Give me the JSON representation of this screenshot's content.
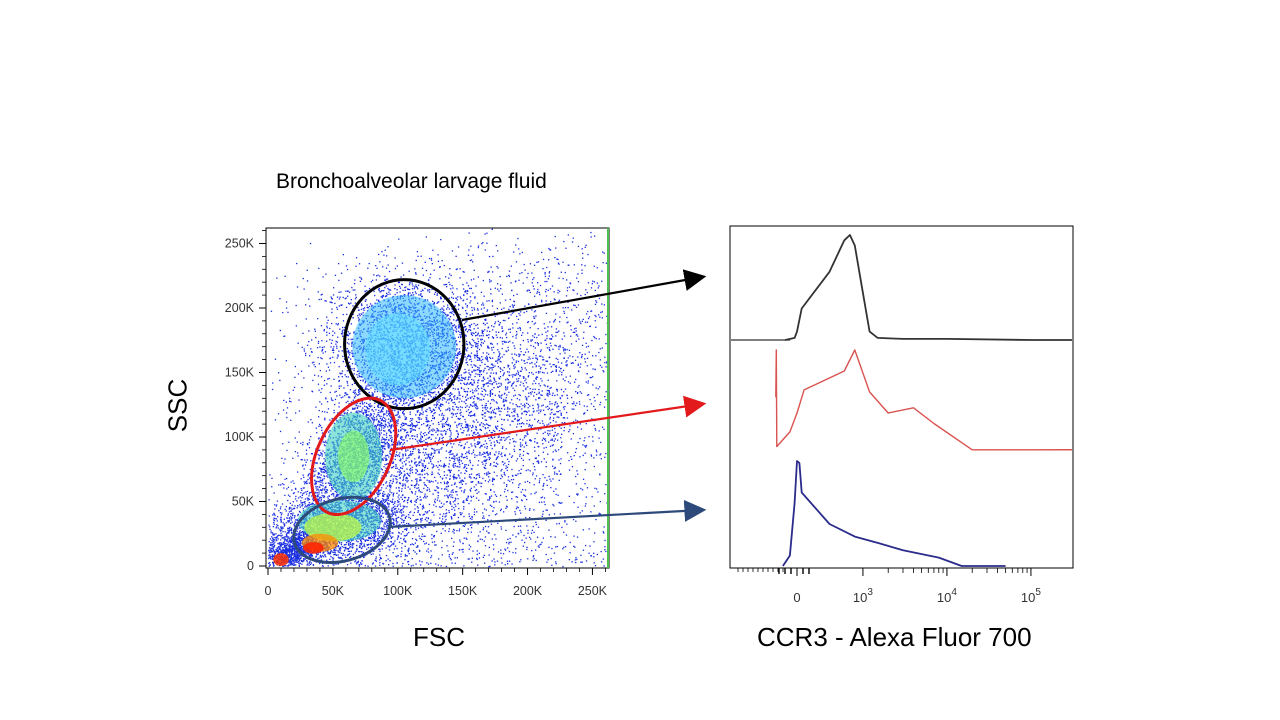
{
  "slide": {
    "title": "Bronchoalveolar larvage fluid"
  },
  "chart_data": [
    {
      "type": "scatter",
      "subtype": "flow-cytometry-density-plot",
      "xlabel": "FSC",
      "ylabel": "SSC",
      "xlim": [
        0,
        262000
      ],
      "ylim": [
        0,
        262000
      ],
      "x_ticks": [
        "0",
        "50K",
        "100K",
        "150K",
        "200K",
        "250K"
      ],
      "y_ticks": [
        "0",
        "50K",
        "100K",
        "150K",
        "200K",
        "250K"
      ],
      "x_tick_values": [
        0,
        50000,
        100000,
        150000,
        200000,
        250000
      ],
      "y_tick_values": [
        0,
        50000,
        100000,
        150000,
        200000,
        250000
      ],
      "density_colors": [
        "#0000ff",
        "#00e0ff",
        "#40ff40",
        "#ffff00",
        "#ff2000"
      ],
      "gates": [
        {
          "name": "black gate",
          "color": "#000000",
          "cx": 105000,
          "cy": 172000,
          "rx": 46000,
          "ry": 50000,
          "angle": 0
        },
        {
          "name": "red gate",
          "color": "#e31a1c",
          "cx": 66000,
          "cy": 85000,
          "rx": 28000,
          "ry": 48000,
          "angle": 25
        },
        {
          "name": "blue gate",
          "color": "#2e4a7a",
          "cx": 57000,
          "cy": 28000,
          "rx": 38000,
          "ry": 24000,
          "angle": -15
        }
      ]
    },
    {
      "type": "line",
      "subtype": "histogram-overlay",
      "xlabel": "CCR3 - Alexa Fluor 700",
      "x_ticks": [
        "0",
        "10^3",
        "10^4",
        "10^5"
      ],
      "x_tick_values": [
        0,
        1000,
        10000,
        100000
      ],
      "x_scale": "biexponential",
      "series": [
        {
          "color": "#333333",
          "x": [
            -500,
            -100,
            0,
            200,
            400,
            600,
            700,
            800,
            1000,
            1200,
            1500,
            3000,
            10000,
            100000
          ],
          "y": [
            0,
            2,
            8,
            30,
            65,
            95,
            100,
            90,
            45,
            8,
            2,
            1,
            1,
            0
          ]
        },
        {
          "color": "#d9534f",
          "x": [
            -900,
            -880,
            -860,
            -700,
            -300,
            0,
            300,
            600,
            800,
            1200,
            2000,
            4000,
            7000,
            20000,
            100000
          ],
          "y": [
            55,
            100,
            8,
            12,
            22,
            40,
            62,
            80,
            100,
            60,
            40,
            45,
            30,
            5,
            5
          ]
        },
        {
          "color": "#2b2b8c",
          "x": [
            -600,
            -300,
            -100,
            0,
            100,
            200,
            400,
            800,
            1500,
            3000,
            8000,
            15000,
            50000
          ],
          "y": [
            0,
            10,
            60,
            100,
            98,
            70,
            40,
            28,
            22,
            15,
            8,
            0,
            0
          ]
        }
      ]
    }
  ]
}
